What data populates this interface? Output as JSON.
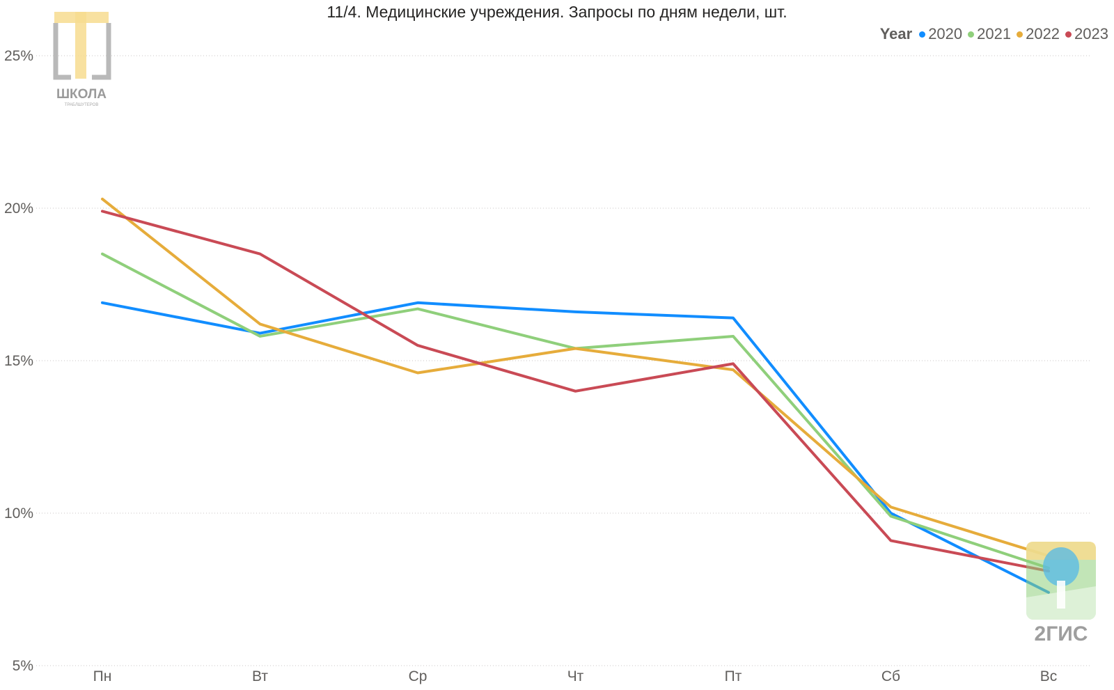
{
  "chart_data": {
    "type": "line",
    "title": "11/4. Медицинские учреждения. Запросы по дням недели, шт.",
    "legend_title": "Year",
    "legend_position": "top-right",
    "categories": [
      "Пн",
      "Вт",
      "Ср",
      "Чт",
      "Пт",
      "Сб",
      "Вс"
    ],
    "y_ticks": [
      "5%",
      "10%",
      "15%",
      "20%",
      "25%"
    ],
    "ylim": [
      5,
      25
    ],
    "y_unit": "%",
    "grid": true,
    "series": [
      {
        "name": "2020",
        "color": "#118dff",
        "values": [
          16.9,
          15.9,
          16.9,
          16.6,
          16.4,
          10.0,
          7.4
        ]
      },
      {
        "name": "2021",
        "color": "#8fcf7b",
        "values": [
          18.5,
          15.8,
          16.7,
          15.4,
          15.8,
          9.9,
          8.2
        ]
      },
      {
        "name": "2022",
        "color": "#e6ac3b",
        "values": [
          20.3,
          16.2,
          14.6,
          15.4,
          14.7,
          10.2,
          8.6
        ]
      },
      {
        "name": "2023",
        "color": "#c94a55",
        "values": [
          19.9,
          18.5,
          15.5,
          14.0,
          14.9,
          9.1,
          8.1
        ]
      }
    ]
  },
  "watermarks": {
    "school_logo_text": "ШКОЛА",
    "school_logo_subtext": "ТРАБЛШУТЕРОВ",
    "gis_logo_text": "2ГИС"
  }
}
